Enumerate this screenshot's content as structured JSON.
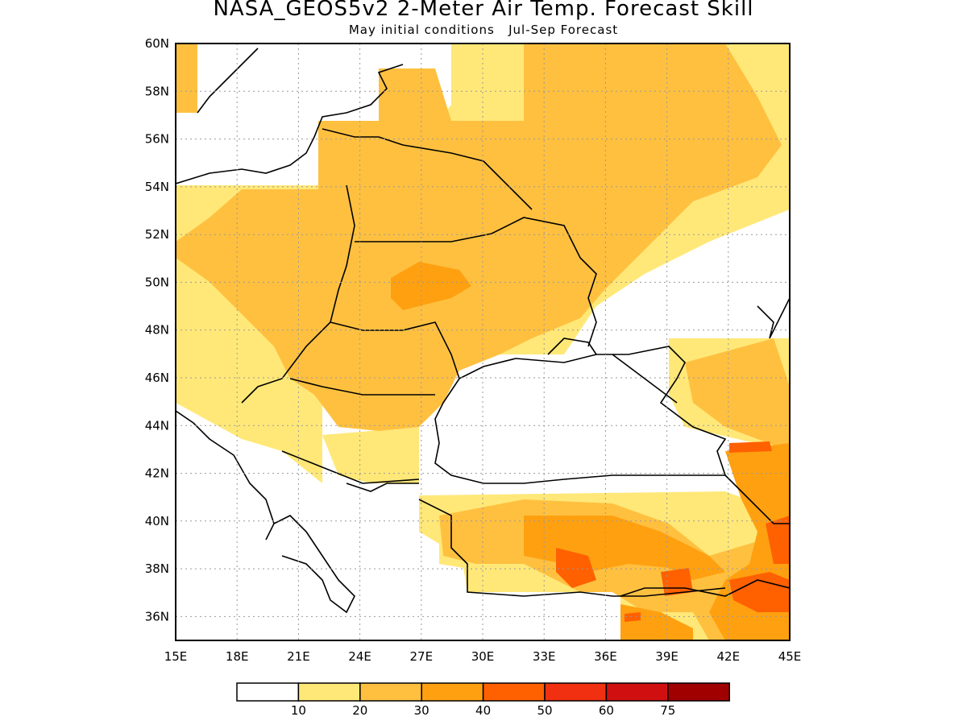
{
  "title": "NASA_GEOS5v2 2-Meter Air Temp. Forecast Skill",
  "subtitle": "May initial conditions   Jul-Sep Forecast",
  "map": {
    "lon_range": [
      15,
      45
    ],
    "lat_range": [
      35,
      60
    ],
    "lon_ticks": [
      "15E",
      "18E",
      "21E",
      "24E",
      "27E",
      "30E",
      "33E",
      "36E",
      "39E",
      "42E",
      "45E"
    ],
    "lat_ticks": [
      "36N",
      "38N",
      "40N",
      "42N",
      "44N",
      "46N",
      "48N",
      "50N",
      "52N",
      "54N",
      "56N",
      "58N",
      "60N"
    ],
    "grid": "dotted"
  },
  "legend": {
    "labels": [
      "10",
      "20",
      "30",
      "40",
      "50",
      "60",
      "75"
    ],
    "colors": [
      "#ffffff",
      "#ffe878",
      "#ffc040",
      "#ffa010",
      "#ff6000",
      "#f03010",
      "#d01010",
      "#a00000"
    ]
  }
}
